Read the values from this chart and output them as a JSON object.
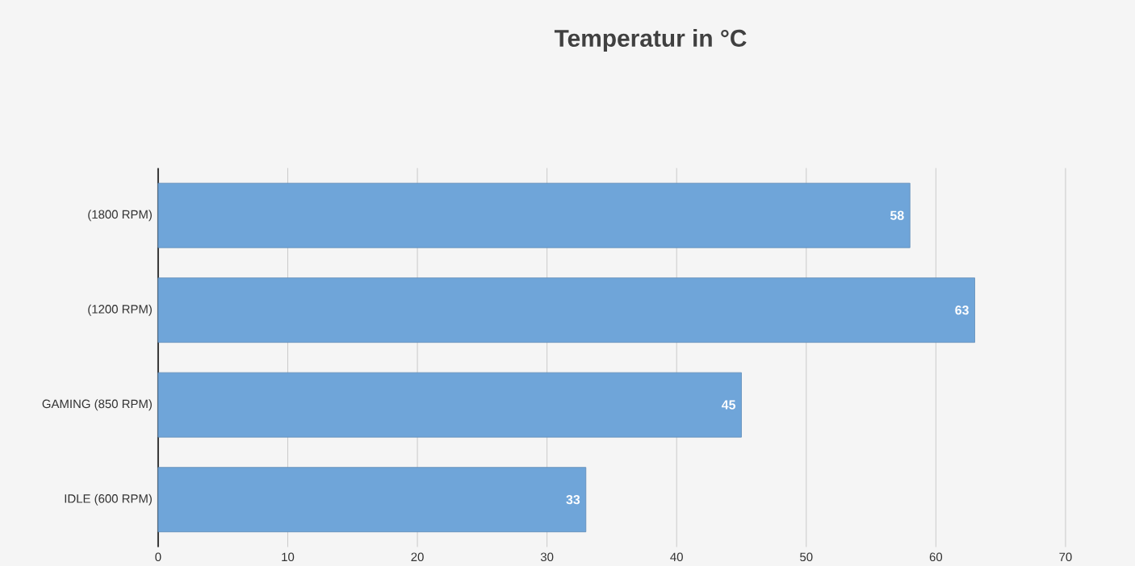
{
  "chart_data": {
    "type": "bar",
    "orientation": "horizontal",
    "title": "Temperatur in °C",
    "categories": [
      "(1800 RPM)",
      "(1200 RPM)",
      "GAMING (850 RPM)",
      "IDLE (600 RPM)"
    ],
    "values": [
      58,
      63,
      45,
      33
    ],
    "color": "#6fa5d9",
    "xlim": [
      0,
      70
    ],
    "xticks": [
      0,
      10,
      20,
      30,
      40,
      50,
      60,
      70
    ],
    "grid": "x",
    "data_labels": true
  }
}
